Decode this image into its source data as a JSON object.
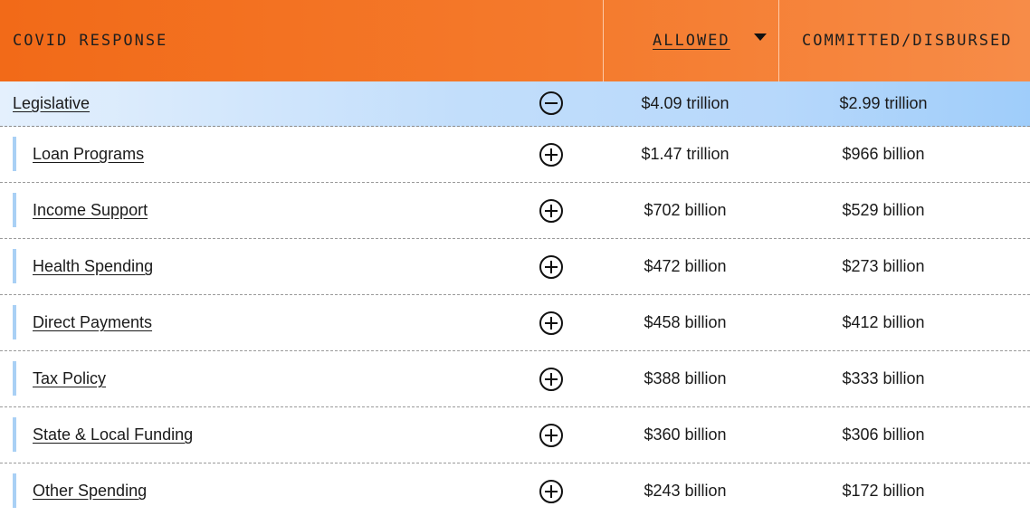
{
  "header": {
    "title": "COVID RESPONSE",
    "allowed_label": "ALLOWED",
    "committed_label": "COMMITTED/DISBURSED"
  },
  "parent_row": {
    "name": "Legislative",
    "allowed": "$4.09 trillion",
    "committed": "$2.99 trillion",
    "toggle": "minus-circle-icon"
  },
  "rows": [
    {
      "name": "Loan Programs",
      "allowed": "$1.47 trillion",
      "committed": "$966 billion"
    },
    {
      "name": "Income Support",
      "allowed": "$702 billion",
      "committed": "$529 billion"
    },
    {
      "name": "Health Spending",
      "allowed": "$472 billion",
      "committed": "$273 billion"
    },
    {
      "name": "Direct Payments",
      "allowed": "$458 billion",
      "committed": "$412 billion"
    },
    {
      "name": "Tax Policy",
      "allowed": "$388 billion",
      "committed": "$333 billion"
    },
    {
      "name": "State & Local Funding",
      "allowed": "$360 billion",
      "committed": "$306 billion"
    },
    {
      "name": "Other Spending",
      "allowed": "$243 billion",
      "committed": "$172 billion"
    }
  ],
  "colors": {
    "header_start": "#f26a18",
    "header_end": "#f78c48",
    "highlight_row": "#b7d8fb",
    "accent_bar": "#a9d0f5"
  }
}
